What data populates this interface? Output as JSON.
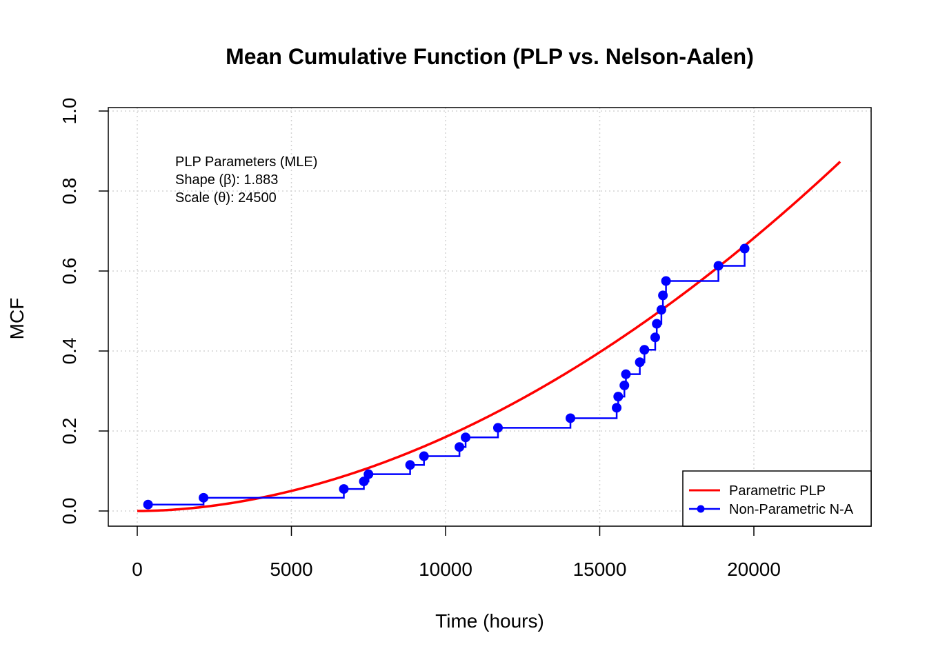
{
  "chart_data": {
    "type": "line",
    "title": "Mean Cumulative Function (PLP vs. Nelson-Aalen)",
    "xlabel": "Time (hours)",
    "ylabel": "MCF",
    "xlim": [
      0,
      23000
    ],
    "ylim": [
      0,
      1.0
    ],
    "x_ticks": [
      0,
      5000,
      10000,
      15000,
      20000
    ],
    "x_tick_labels": [
      "0",
      "5000",
      "10000",
      "15000",
      "20000"
    ],
    "y_ticks": [
      0.0,
      0.2,
      0.4,
      0.6,
      0.8,
      1.0
    ],
    "y_tick_labels": [
      "0.0",
      "0.2",
      "0.4",
      "0.6",
      "0.8",
      "1.0"
    ],
    "grid": true,
    "legend_position": "bottom-right",
    "annotation_lines": [
      "PLP Parameters (MLE)",
      "Shape (β): 1.883",
      "Scale (θ): 24500"
    ],
    "series": [
      {
        "name": "Parametric PLP",
        "kind": "curve",
        "color": "#ff0000",
        "shape": 1.883,
        "scale": 24500,
        "x_range": [
          0,
          22800
        ]
      },
      {
        "name": "Non-Parametric N-A",
        "kind": "step-points",
        "color": "#0000ff",
        "x": [
          350,
          2150,
          6700,
          7350,
          7500,
          8850,
          9300,
          10450,
          10650,
          11700,
          14050,
          15550,
          15600,
          15800,
          15850,
          16300,
          16450,
          16800,
          16850,
          17000,
          17050,
          17150,
          18850,
          19700
        ],
        "y": [
          0.016,
          0.033,
          0.055,
          0.074,
          0.092,
          0.115,
          0.137,
          0.16,
          0.184,
          0.208,
          0.232,
          0.258,
          0.286,
          0.314,
          0.342,
          0.372,
          0.403,
          0.434,
          0.468,
          0.503,
          0.539,
          0.575,
          0.613,
          0.656
        ]
      }
    ]
  }
}
